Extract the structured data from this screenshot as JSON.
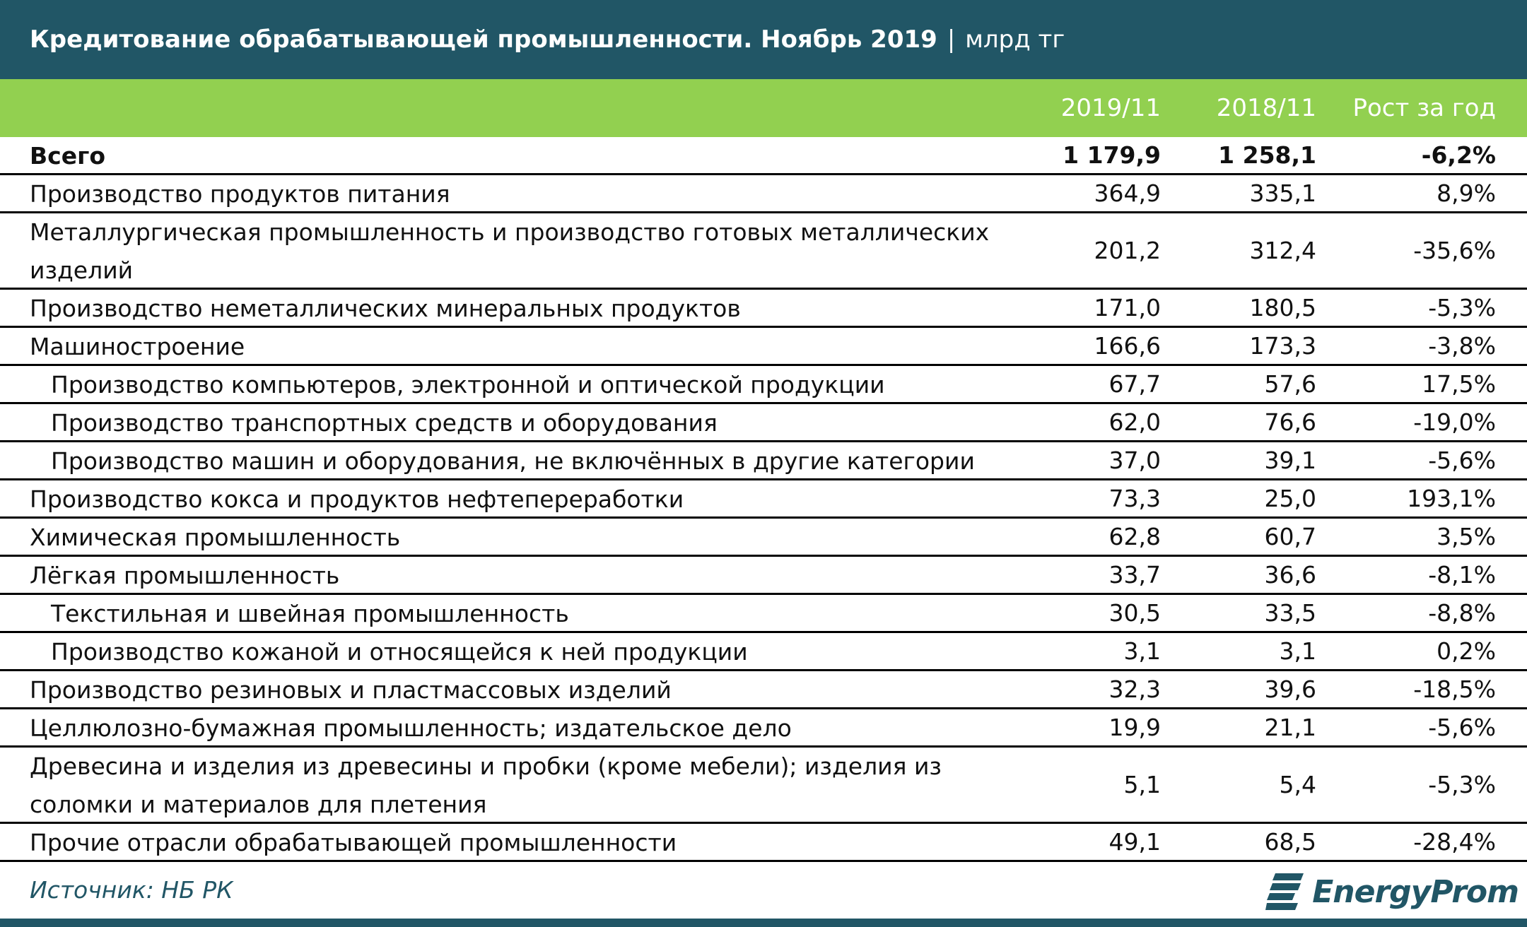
{
  "header": {
    "title": "Кредитование обрабатывающей промышленности. Ноябрь 2019",
    "separator": "|",
    "unit": "млрд тг"
  },
  "columns": [
    "2019/11",
    "2018/11",
    "Рост за год"
  ],
  "chart_data": {
    "type": "table",
    "columns": [
      "2019/11",
      "2018/11",
      "Рост за год"
    ],
    "rows": [
      {
        "label": "Всего",
        "v2019": "1 179,9",
        "v2018": "1 258,1",
        "growth": "-6,2%",
        "bold": true,
        "lines": 1
      },
      {
        "label": "Производство продуктов питания",
        "v2019": "364,9",
        "v2018": "335,1",
        "growth": "8,9%",
        "lines": 1
      },
      {
        "label": "Металлургическая промышленность и производство готовых металлических изделий",
        "v2019": "201,2",
        "v2018": "312,4",
        "growth": "-35,6%",
        "lines": 2
      },
      {
        "label": "Производство неметаллических минеральных продуктов",
        "v2019": "171,0",
        "v2018": "180,5",
        "growth": "-5,3%",
        "lines": 1
      },
      {
        "label": "Машиностроение",
        "v2019": "166,6",
        "v2018": "173,3",
        "growth": "-3,8%",
        "lines": 1
      },
      {
        "label": "Производство компьютеров, электронной и оптической продукции",
        "v2019": "67,7",
        "v2018": "57,6",
        "growth": "17,5%",
        "sub": true,
        "lines": 1
      },
      {
        "label": "Производство транспортных средств и оборудования",
        "v2019": "62,0",
        "v2018": "76,6",
        "growth": "-19,0%",
        "sub": true,
        "lines": 1
      },
      {
        "label": "Производство машин и оборудования, не включённых в другие категории",
        "v2019": "37,0",
        "v2018": "39,1",
        "growth": "-5,6%",
        "sub": true,
        "lines": 1
      },
      {
        "label": "Производство кокса и продуктов нефтепереработки",
        "v2019": "73,3",
        "v2018": "25,0",
        "growth": "193,1%",
        "lines": 1
      },
      {
        "label": "Химическая промышленность",
        "v2019": "62,8",
        "v2018": "60,7",
        "growth": "3,5%",
        "lines": 1
      },
      {
        "label": "Лёгкая промышленность",
        "v2019": "33,7",
        "v2018": "36,6",
        "growth": "-8,1%",
        "lines": 1
      },
      {
        "label": "Текстильная и швейная промышленность",
        "v2019": "30,5",
        "v2018": "33,5",
        "growth": "-8,8%",
        "sub": true,
        "lines": 1
      },
      {
        "label": "Производство кожаной и относящейся к ней продукции",
        "v2019": "3,1",
        "v2018": "3,1",
        "growth": "0,2%",
        "sub": true,
        "lines": 1
      },
      {
        "label": "Производство резиновых и пластмассовых изделий",
        "v2019": "32,3",
        "v2018": "39,6",
        "growth": "-18,5%",
        "lines": 1
      },
      {
        "label": "Целлюлозно-бумажная промышленность; издательское дело",
        "v2019": "19,9",
        "v2018": "21,1",
        "growth": "-5,6%",
        "lines": 1
      },
      {
        "label": "Древесина и изделия из древесины и пробки (кроме мебели); изделия из соломки и материалов для плетения",
        "v2019": "5,1",
        "v2018": "5,4",
        "growth": "-5,3%",
        "lines": 2
      },
      {
        "label": "Прочие отрасли обрабатывающей промышленности",
        "v2019": "49,1",
        "v2018": "68,5",
        "growth": "-28,4%",
        "lines": 1
      }
    ]
  },
  "footer": {
    "source": "Источник: НБ РК",
    "logo_text": "EnergyProm",
    "logo_icon": "energyprom-logo-icon"
  },
  "colors": {
    "header_bg": "#215666",
    "colhead_bg": "#92d050",
    "brand": "#215666"
  }
}
